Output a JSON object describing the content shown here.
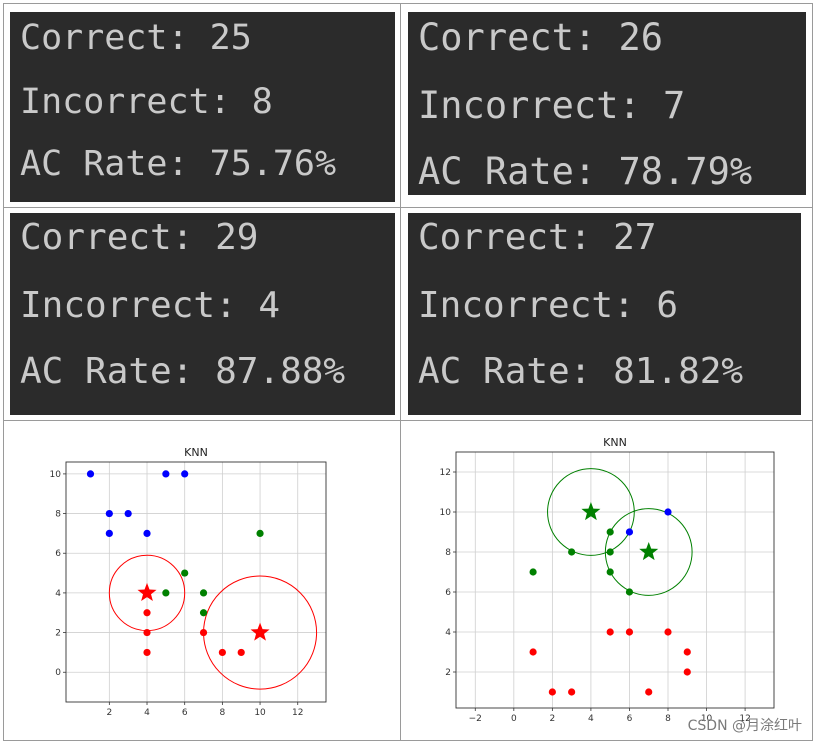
{
  "panels": [
    {
      "correct": "Correct: 25",
      "incorrect": "Incorrect: 8",
      "rate": "AC Rate: 75.76%"
    },
    {
      "correct": "Correct: 26",
      "incorrect": "Incorrect: 7",
      "rate": "AC Rate: 78.79%"
    },
    {
      "correct": "Correct: 29",
      "incorrect": "Incorrect: 4",
      "rate": "AC Rate: 87.88%"
    },
    {
      "correct": "Correct: 27",
      "incorrect": "Incorrect: 6",
      "rate": "AC Rate: 81.82%"
    }
  ],
  "chart_data": [
    {
      "type": "scatter",
      "title": "KNN",
      "xlim": [
        -0.3,
        13.5
      ],
      "ylim": [
        -1.5,
        10.6
      ],
      "xticks": [
        2,
        4,
        6,
        8,
        10,
        12
      ],
      "yticks": [
        0,
        2,
        4,
        6,
        8,
        10
      ],
      "grid": true,
      "series": [
        {
          "color": "#0000ff",
          "points": [
            [
              1,
              10
            ],
            [
              5,
              10
            ],
            [
              6,
              10
            ],
            [
              2,
              8
            ],
            [
              3,
              8
            ],
            [
              2,
              7
            ],
            [
              4,
              7
            ]
          ]
        },
        {
          "color": "#008000",
          "points": [
            [
              10,
              7
            ],
            [
              6,
              5
            ],
            [
              5,
              4
            ],
            [
              7,
              4
            ],
            [
              7,
              3
            ]
          ]
        },
        {
          "color": "#ff0000",
          "points": [
            [
              4,
              3
            ],
            [
              4,
              2
            ],
            [
              7,
              2
            ],
            [
              4,
              1
            ],
            [
              8,
              1
            ],
            [
              9,
              1
            ]
          ]
        }
      ],
      "stars": [
        {
          "x": 4,
          "y": 4,
          "color": "#ff0000"
        },
        {
          "x": 10,
          "y": 2,
          "color": "#ff0000"
        }
      ],
      "circles": [
        {
          "x": 4,
          "y": 4,
          "r": 2,
          "color": "#ff0000"
        },
        {
          "x": 10,
          "y": 2,
          "r": 3,
          "color": "#ff0000"
        }
      ]
    },
    {
      "type": "scatter",
      "title": "KNN",
      "xlim": [
        -3,
        13.5
      ],
      "ylim": [
        0.2,
        13
      ],
      "xticks": [
        -2,
        0,
        2,
        4,
        6,
        8,
        10,
        12
      ],
      "yticks": [
        2,
        4,
        6,
        8,
        10,
        12
      ],
      "grid": true,
      "series": [
        {
          "color": "#0000ff",
          "points": [
            [
              6,
              9
            ],
            [
              8,
              10
            ]
          ]
        },
        {
          "color": "#008000",
          "points": [
            [
              1,
              7
            ],
            [
              3,
              8
            ],
            [
              5,
              9
            ],
            [
              5,
              8
            ],
            [
              5,
              7
            ],
            [
              6,
              6
            ]
          ]
        },
        {
          "color": "#ff0000",
          "points": [
            [
              1,
              3
            ],
            [
              2,
              1
            ],
            [
              3,
              1
            ],
            [
              5,
              4
            ],
            [
              6,
              4
            ],
            [
              8,
              4
            ],
            [
              9,
              3
            ],
            [
              9,
              2
            ],
            [
              7,
              1
            ]
          ]
        }
      ],
      "stars": [
        {
          "x": 4,
          "y": 10,
          "color": "#008000"
        },
        {
          "x": 7,
          "y": 8,
          "color": "#008000"
        }
      ],
      "circles": [
        {
          "x": 4,
          "y": 10,
          "r": 2.25,
          "color": "#008000"
        },
        {
          "x": 7,
          "y": 8,
          "r": 2.25,
          "color": "#008000"
        }
      ]
    }
  ],
  "watermark": "CSDN @月涂红叶"
}
